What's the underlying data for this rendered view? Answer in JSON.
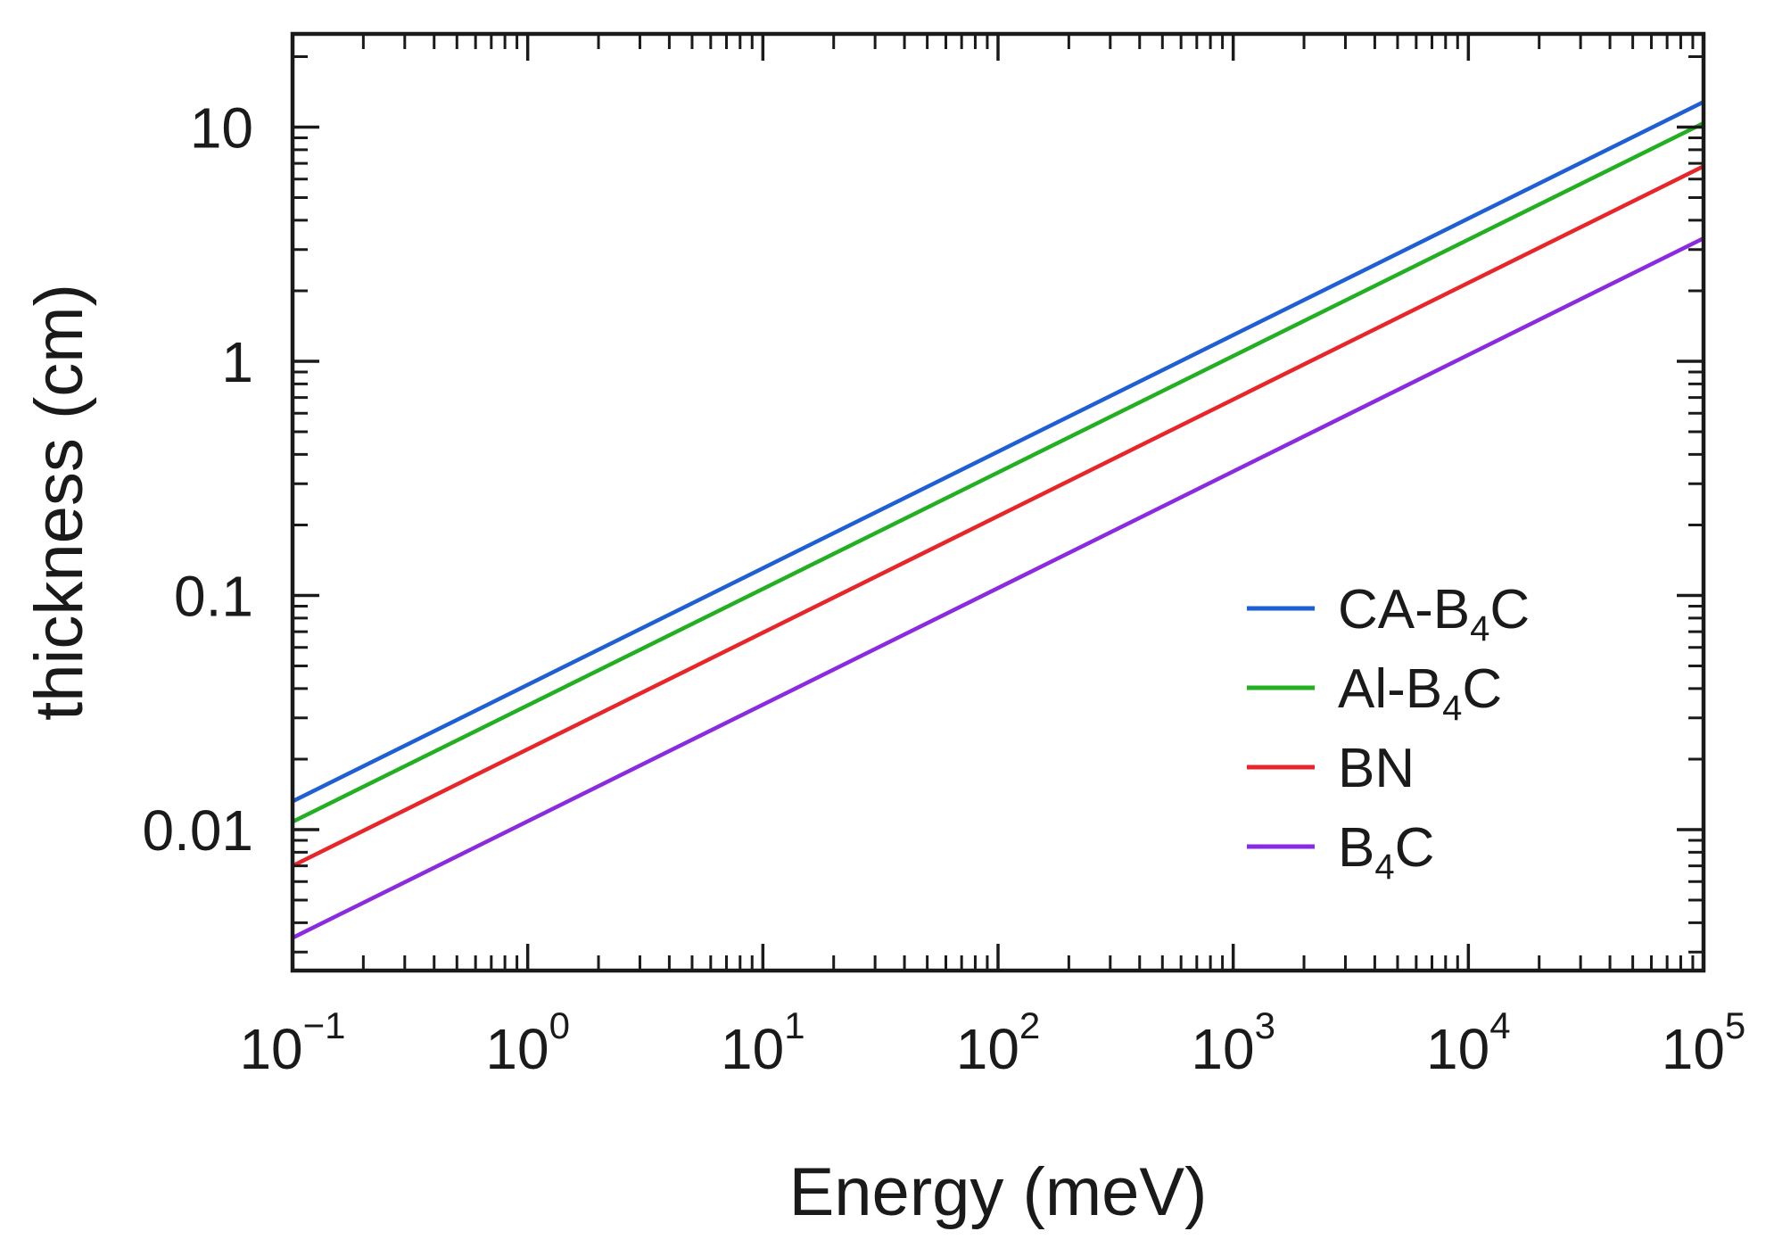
{
  "chart_data": {
    "type": "line",
    "title": "",
    "xlabel": "Energy (meV)",
    "ylabel": "thickness (cm)",
    "x_scale": "log",
    "y_scale": "log",
    "xlim": [
      0.1,
      100000
    ],
    "ylim": [
      0.0025,
      25
    ],
    "x_ticks": [
      {
        "base": "10",
        "exp": "−1",
        "value": 0.1
      },
      {
        "base": "10",
        "exp": "0",
        "value": 1
      },
      {
        "base": "10",
        "exp": "1",
        "value": 10
      },
      {
        "base": "10",
        "exp": "2",
        "value": 100
      },
      {
        "base": "10",
        "exp": "3",
        "value": 1000
      },
      {
        "base": "10",
        "exp": "4",
        "value": 10000
      },
      {
        "base": "10",
        "exp": "5",
        "value": 100000
      }
    ],
    "y_ticks": [
      {
        "label": "0.01",
        "value": 0.01
      },
      {
        "label": "0.1",
        "value": 0.1
      },
      {
        "label": "1",
        "value": 1
      },
      {
        "label": "10",
        "value": 10
      }
    ],
    "grid": false,
    "legend_position": "lower-right",
    "series": [
      {
        "name": "CA-B4C",
        "name_main": "CA-B",
        "name_sub": "4",
        "name_tail": "C",
        "color": "#1f5fd6",
        "x": [
          0.1,
          100000
        ],
        "y": [
          0.0132,
          12.8
        ]
      },
      {
        "name": "Al-B4C",
        "name_main": "Al-B",
        "name_sub": "4",
        "name_tail": "C",
        "color": "#22b022",
        "x": [
          0.1,
          100000
        ],
        "y": [
          0.0108,
          10.4
        ]
      },
      {
        "name": "BN",
        "name_main": "BN",
        "name_sub": "",
        "name_tail": "",
        "color": "#e8262a",
        "x": [
          0.1,
          100000
        ],
        "y": [
          0.007,
          6.8
        ]
      },
      {
        "name": "B4C",
        "name_main": "B",
        "name_sub": "4",
        "name_tail": "C",
        "color": "#8a2be2",
        "x": [
          0.1,
          100000
        ],
        "y": [
          0.00345,
          3.35
        ]
      }
    ]
  }
}
